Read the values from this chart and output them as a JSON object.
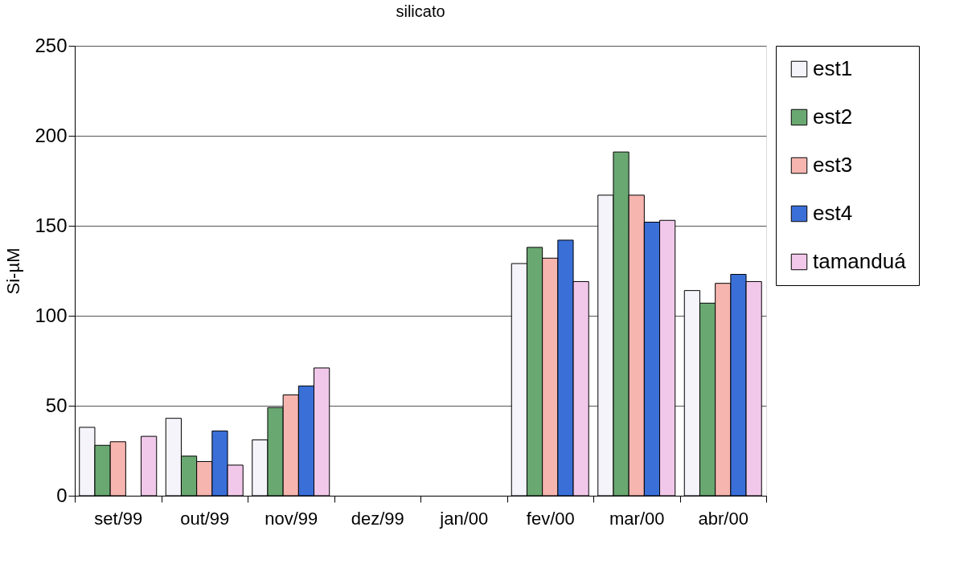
{
  "chart_data": {
    "type": "bar",
    "title": "silicato",
    "ylabel": "Si-µM",
    "categories": [
      "set/99",
      "out/99",
      "nov/99",
      "dez/99",
      "jan/00",
      "fev/00",
      "mar/00",
      "abr/00"
    ],
    "series": [
      {
        "name": "est1",
        "color": "#f4f4fa",
        "values": [
          38,
          43,
          31,
          null,
          null,
          129,
          167,
          114
        ]
      },
      {
        "name": "est2",
        "color": "#6aa872",
        "values": [
          28,
          22,
          49,
          null,
          null,
          138,
          191,
          107
        ]
      },
      {
        "name": "est3",
        "color": "#f7b5b0",
        "values": [
          30,
          19,
          56,
          null,
          null,
          132,
          167,
          118
        ]
      },
      {
        "name": "est4",
        "color": "#3a6fd8",
        "values": [
          null,
          36,
          61,
          null,
          null,
          142,
          152,
          123
        ]
      },
      {
        "name": "tamanduá",
        "color": "#f2c8ea",
        "values": [
          33,
          17,
          71,
          null,
          null,
          119,
          153,
          119
        ]
      }
    ],
    "ylim": [
      0,
      250
    ],
    "yticks": [
      0,
      50,
      100,
      150,
      200,
      250
    ],
    "grid": "y",
    "legend": "right"
  }
}
